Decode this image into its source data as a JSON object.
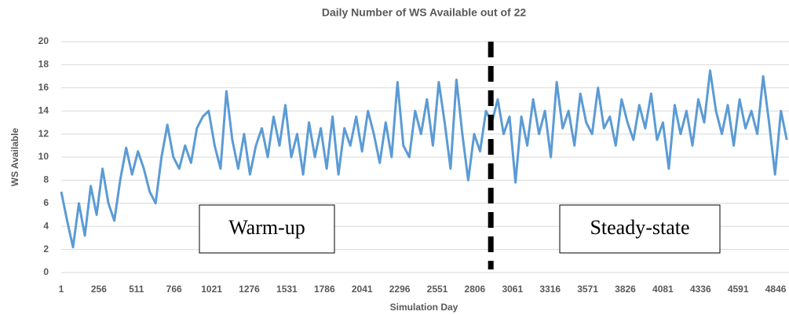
{
  "chart_data": {
    "type": "line",
    "title": "Daily Number of WS Available out of 22",
    "x_label": "Simulation Day",
    "y_label": "WS Available",
    "x": [
      1,
      41,
      81,
      121,
      161,
      201,
      241,
      281,
      321,
      361,
      401,
      441,
      481,
      521,
      561,
      601,
      641,
      681,
      721,
      761,
      801,
      841,
      881,
      921,
      961,
      1001,
      1041,
      1081,
      1121,
      1161,
      1201,
      1241,
      1281,
      1321,
      1361,
      1401,
      1441,
      1481,
      1521,
      1561,
      1601,
      1641,
      1681,
      1721,
      1761,
      1801,
      1841,
      1881,
      1921,
      1961,
      2001,
      2041,
      2081,
      2121,
      2161,
      2201,
      2241,
      2281,
      2321,
      2361,
      2401,
      2441,
      2481,
      2521,
      2561,
      2601,
      2641,
      2681,
      2721,
      2761,
      2801,
      2841,
      2881,
      2921,
      2961,
      3001,
      3041,
      3081,
      3121,
      3161,
      3201,
      3241,
      3281,
      3321,
      3361,
      3401,
      3441,
      3481,
      3521,
      3561,
      3601,
      3641,
      3681,
      3721,
      3761,
      3801,
      3841,
      3881,
      3921,
      3961,
      4001,
      4041,
      4081,
      4121,
      4161,
      4201,
      4241,
      4281,
      4321,
      4361,
      4401,
      4441,
      4481,
      4521,
      4561,
      4601,
      4641,
      4681,
      4721,
      4761,
      4801,
      4841,
      4881,
      4921
    ],
    "series": [
      {
        "name": "WS Available",
        "color": "#5b9bd5",
        "values": [
          7,
          4.5,
          2.2,
          6,
          3.2,
          7.5,
          5,
          9,
          6,
          4.5,
          8,
          10.8,
          8.5,
          10.5,
          9,
          7,
          6,
          10,
          12.8,
          10,
          9,
          11,
          9.5,
          12.5,
          13.5,
          14,
          11,
          9,
          15.7,
          11.5,
          9,
          12,
          8.5,
          11,
          12.5,
          10,
          13.5,
          11,
          14.5,
          10,
          12,
          8.5,
          13,
          10,
          12.5,
          9,
          13.5,
          8.5,
          12.5,
          11,
          13.5,
          10.5,
          14,
          12,
          9.5,
          13,
          10,
          16.5,
          11,
          10,
          14,
          12,
          15,
          11,
          16.5,
          13,
          9,
          16.7,
          12,
          8,
          12,
          10.5,
          14,
          13,
          15,
          12,
          13.5,
          7.8,
          13.5,
          11,
          15,
          12,
          14,
          10,
          16.5,
          12.5,
          14,
          11,
          15.5,
          13,
          12,
          16,
          12.5,
          13.5,
          11,
          15,
          13,
          11.5,
          14.5,
          12.5,
          15.5,
          11.5,
          13,
          9,
          14.5,
          12,
          14,
          11,
          15,
          13,
          17.5,
          14,
          12,
          14.5,
          11,
          15,
          12.5,
          14,
          12,
          17,
          13,
          8.5,
          14,
          11.5
        ]
      }
    ],
    "xlim": [
      1,
      4936
    ],
    "xticks": [
      1,
      256,
      511,
      766,
      1021,
      1276,
      1531,
      1786,
      2041,
      2296,
      2551,
      2806,
      3061,
      3316,
      3571,
      3826,
      4081,
      4336,
      4591,
      4846
    ],
    "ylim": [
      0,
      20
    ],
    "yticks": [
      0,
      2,
      4,
      6,
      8,
      10,
      12,
      14,
      16,
      18,
      20
    ],
    "grid": true,
    "vline": 2914,
    "annotations": [
      "Warm-up",
      "Steady-state"
    ]
  }
}
